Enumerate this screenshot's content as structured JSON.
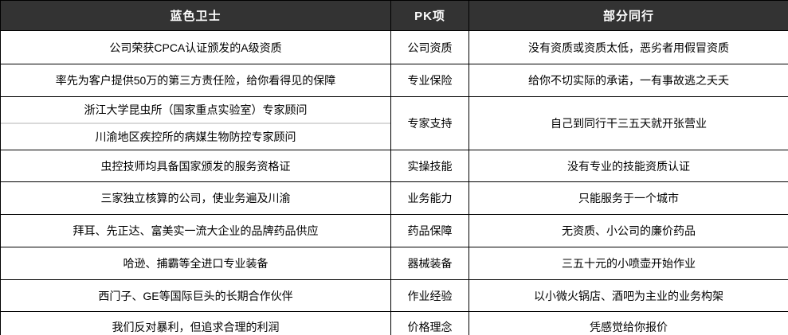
{
  "table": {
    "headers": {
      "ours": "蓝色卫士",
      "pk": "PK项",
      "peers": "部分同行"
    },
    "rows": [
      {
        "pk": "公司资质",
        "ours": "公司荣获CPCA认证颁发的A级资质",
        "peers": "没有资质或资质太低，恶劣者用假冒资质"
      },
      {
        "pk": "专业保险",
        "ours": "率先为客户提供50万的第三方责任险，给你看得见的保障",
        "peers": "给你不切实际的承诺，一有事故逃之夭夭"
      },
      {
        "pk": "专家支持",
        "ours_line1": "浙江大学昆虫所（国家重点实验室）专家顾问",
        "ours_line2": "川渝地区疾控所的病媒生物防控专家顾问",
        "peers": "自己到同行干三五天就开张营业"
      },
      {
        "pk": "实操技能",
        "ours": "虫控技师均具备国家颁发的服务资格证",
        "peers": "没有专业的技能资质认证"
      },
      {
        "pk": "业务能力",
        "ours": "三家独立核算的公司，使业务遍及川渝",
        "peers": "只能服务于一个城市"
      },
      {
        "pk": "药品保障",
        "ours": "拜耳、先正达、富美实一流大企业的品牌药品供应",
        "peers": "无资质、小公司的廉价药品"
      },
      {
        "pk": "器械装备",
        "ours": "哈逊、捕霸等全进口专业装备",
        "peers": "三五十元的小喷壶开始作业"
      },
      {
        "pk": "作业经验",
        "ours": "西门子、GE等国际巨头的长期合作伙伴",
        "peers": "以小微火锅店、酒吧为主业的业务构架"
      },
      {
        "pk": "价格理念",
        "ours": "我们反对暴利，但追求合理的利润",
        "peers": "凭感觉给你报价"
      }
    ],
    "colors": {
      "header_bg": "#333333",
      "header_text": "#ffffff",
      "border": "#000000",
      "light_divider": "#d9d9d9",
      "body_text": "#000000",
      "background": "#ffffff"
    }
  },
  "chart_data": {
    "type": "table",
    "title": "蓝色卫士 vs 部分同行 PK对比表",
    "columns": [
      "蓝色卫士",
      "PK项",
      "部分同行"
    ],
    "rows": [
      [
        "公司荣获CPCA认证颁发的A级资质",
        "公司资质",
        "没有资质或资质太低，恶劣者用假冒资质"
      ],
      [
        "率先为客户提供50万的第三方责任险，给你看得见的保障",
        "专业保险",
        "给你不切实际的承诺，一有事故逃之夭夭"
      ],
      [
        "浙江大学昆虫所（国家重点实验室）专家顾问 / 川渝地区疾控所的病媒生物防控专家顾问",
        "专家支持",
        "自己到同行干三五天就开张营业"
      ],
      [
        "虫控技师均具备国家颁发的服务资格证",
        "实操技能",
        "没有专业的技能资质认证"
      ],
      [
        "三家独立核算的公司，使业务遍及川渝",
        "业务能力",
        "只能服务于一个城市"
      ],
      [
        "拜耳、先正达、富美实一流大企业的品牌药品供应",
        "药品保障",
        "无资质、小公司的廉价药品"
      ],
      [
        "哈逊、捕霸等全进口专业装备",
        "器械装备",
        "三五十元的小喷壶开始作业"
      ],
      [
        "西门子、GE等国际巨头的长期合作伙伴",
        "作业经验",
        "以小微火锅店、酒吧为主业的业务构架"
      ],
      [
        "我们反对暴利，但追求合理的利润",
        "价格理念",
        "凭感觉给你报价"
      ]
    ]
  }
}
